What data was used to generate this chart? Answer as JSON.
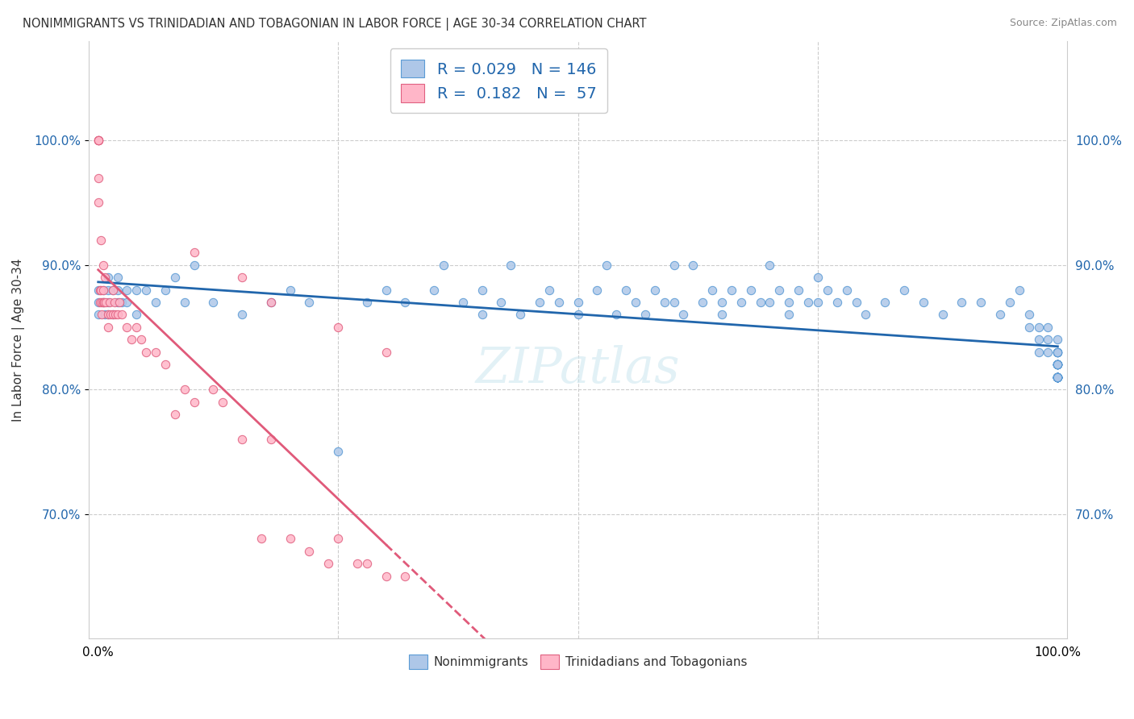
{
  "title": "NONIMMIGRANTS VS TRINIDADIAN AND TOBAGONIAN IN LABOR FORCE | AGE 30-34 CORRELATION CHART",
  "source": "Source: ZipAtlas.com",
  "ylabel": "In Labor Force | Age 30-34",
  "R_blue": 0.029,
  "N_blue": 146,
  "R_pink": 0.182,
  "N_pink": 57,
  "blue_color": "#aec7e8",
  "pink_color": "#ffb6c8",
  "blue_edge_color": "#5b9bd5",
  "pink_edge_color": "#e06080",
  "blue_line_color": "#2166ac",
  "pink_line_color": "#e05a7a",
  "watermark": "ZIPatlas",
  "ytick_values": [
    0.7,
    0.8,
    0.9,
    1.0
  ],
  "ytick_labels": [
    "70.0%",
    "80.0%",
    "90.0%",
    "100.0%"
  ],
  "ylim": [
    0.6,
    1.08
  ],
  "xlim": [
    -0.01,
    1.01
  ],
  "blue_scatter_x": [
    0.0,
    0.0,
    0.0,
    0.005,
    0.005,
    0.007,
    0.01,
    0.01,
    0.01,
    0.01,
    0.015,
    0.015,
    0.02,
    0.02,
    0.02,
    0.025,
    0.03,
    0.03,
    0.04,
    0.04,
    0.05,
    0.06,
    0.07,
    0.08,
    0.09,
    0.1,
    0.12,
    0.15,
    0.18,
    0.2,
    0.22,
    0.25,
    0.28,
    0.3,
    0.32,
    0.35,
    0.36,
    0.38,
    0.4,
    0.4,
    0.42,
    0.43,
    0.44,
    0.46,
    0.47,
    0.48,
    0.5,
    0.5,
    0.52,
    0.53,
    0.54,
    0.55,
    0.56,
    0.57,
    0.58,
    0.59,
    0.6,
    0.6,
    0.61,
    0.62,
    0.63,
    0.64,
    0.65,
    0.65,
    0.66,
    0.67,
    0.68,
    0.69,
    0.7,
    0.7,
    0.71,
    0.72,
    0.72,
    0.73,
    0.74,
    0.75,
    0.75,
    0.76,
    0.77,
    0.78,
    0.79,
    0.8,
    0.82,
    0.84,
    0.86,
    0.88,
    0.9,
    0.92,
    0.94,
    0.95,
    0.96,
    0.97,
    0.97,
    0.98,
    0.98,
    0.98,
    0.99,
    0.99,
    0.99,
    1.0,
    1.0,
    1.0,
    1.0,
    1.0,
    1.0,
    1.0,
    1.0,
    1.0,
    1.0,
    1.0,
    1.0,
    1.0,
    1.0,
    1.0,
    1.0,
    1.0,
    1.0,
    1.0,
    1.0,
    1.0,
    1.0,
    1.0,
    1.0,
    1.0,
    1.0,
    1.0,
    1.0,
    1.0,
    1.0,
    1.0,
    1.0,
    1.0,
    1.0,
    1.0,
    1.0,
    1.0,
    1.0,
    1.0,
    1.0,
    1.0,
    1.0,
    1.0,
    1.0,
    1.0
  ],
  "blue_scatter_y": [
    0.88,
    0.87,
    0.86,
    0.88,
    0.87,
    0.86,
    0.89,
    0.88,
    0.87,
    0.86,
    0.88,
    0.86,
    0.89,
    0.88,
    0.87,
    0.87,
    0.88,
    0.87,
    0.88,
    0.86,
    0.88,
    0.87,
    0.88,
    0.89,
    0.87,
    0.9,
    0.87,
    0.86,
    0.87,
    0.88,
    0.87,
    0.75,
    0.87,
    0.88,
    0.87,
    0.88,
    0.9,
    0.87,
    0.88,
    0.86,
    0.87,
    0.9,
    0.86,
    0.87,
    0.88,
    0.87,
    0.87,
    0.86,
    0.88,
    0.9,
    0.86,
    0.88,
    0.87,
    0.86,
    0.88,
    0.87,
    0.9,
    0.87,
    0.86,
    0.9,
    0.87,
    0.88,
    0.87,
    0.86,
    0.88,
    0.87,
    0.88,
    0.87,
    0.9,
    0.87,
    0.88,
    0.87,
    0.86,
    0.88,
    0.87,
    0.89,
    0.87,
    0.88,
    0.87,
    0.88,
    0.87,
    0.86,
    0.87,
    0.88,
    0.87,
    0.86,
    0.87,
    0.87,
    0.86,
    0.87,
    0.88,
    0.86,
    0.85,
    0.84,
    0.85,
    0.83,
    0.85,
    0.84,
    0.83,
    0.83,
    0.84,
    0.83,
    0.82,
    0.81,
    0.83,
    0.82,
    0.81,
    0.83,
    0.82,
    0.81,
    0.82,
    0.81,
    0.83,
    0.82,
    0.81,
    0.82,
    0.81,
    0.82,
    0.81,
    0.82,
    0.81,
    0.81,
    0.81,
    0.82,
    0.81,
    0.81,
    0.81,
    0.81,
    0.82,
    0.81,
    0.81,
    0.81,
    0.81,
    0.81,
    0.81,
    0.81,
    0.81,
    0.81,
    0.81,
    0.82,
    0.81,
    0.81,
    0.81,
    0.81
  ],
  "pink_scatter_x": [
    0.0,
    0.0,
    0.0,
    0.0,
    0.0,
    0.0,
    0.002,
    0.002,
    0.003,
    0.003,
    0.004,
    0.004,
    0.005,
    0.005,
    0.005,
    0.006,
    0.007,
    0.008,
    0.01,
    0.01,
    0.012,
    0.013,
    0.015,
    0.015,
    0.017,
    0.018,
    0.02,
    0.022,
    0.025,
    0.03,
    0.035,
    0.04,
    0.045,
    0.05,
    0.06,
    0.07,
    0.08,
    0.09,
    0.1,
    0.12,
    0.13,
    0.15,
    0.17,
    0.18,
    0.2,
    0.22,
    0.24,
    0.25,
    0.27,
    0.28,
    0.3,
    0.32,
    0.1,
    0.15,
    0.18,
    0.25,
    0.3
  ],
  "pink_scatter_y": [
    1.0,
    1.0,
    1.0,
    1.0,
    0.97,
    0.95,
    0.88,
    0.87,
    0.92,
    0.88,
    0.87,
    0.86,
    0.9,
    0.88,
    0.87,
    0.87,
    0.89,
    0.87,
    0.86,
    0.85,
    0.87,
    0.86,
    0.88,
    0.86,
    0.87,
    0.86,
    0.86,
    0.87,
    0.86,
    0.85,
    0.84,
    0.85,
    0.84,
    0.83,
    0.83,
    0.82,
    0.78,
    0.8,
    0.79,
    0.8,
    0.79,
    0.76,
    0.68,
    0.76,
    0.68,
    0.67,
    0.66,
    0.68,
    0.66,
    0.66,
    0.65,
    0.65,
    0.91,
    0.89,
    0.87,
    0.85,
    0.83
  ]
}
